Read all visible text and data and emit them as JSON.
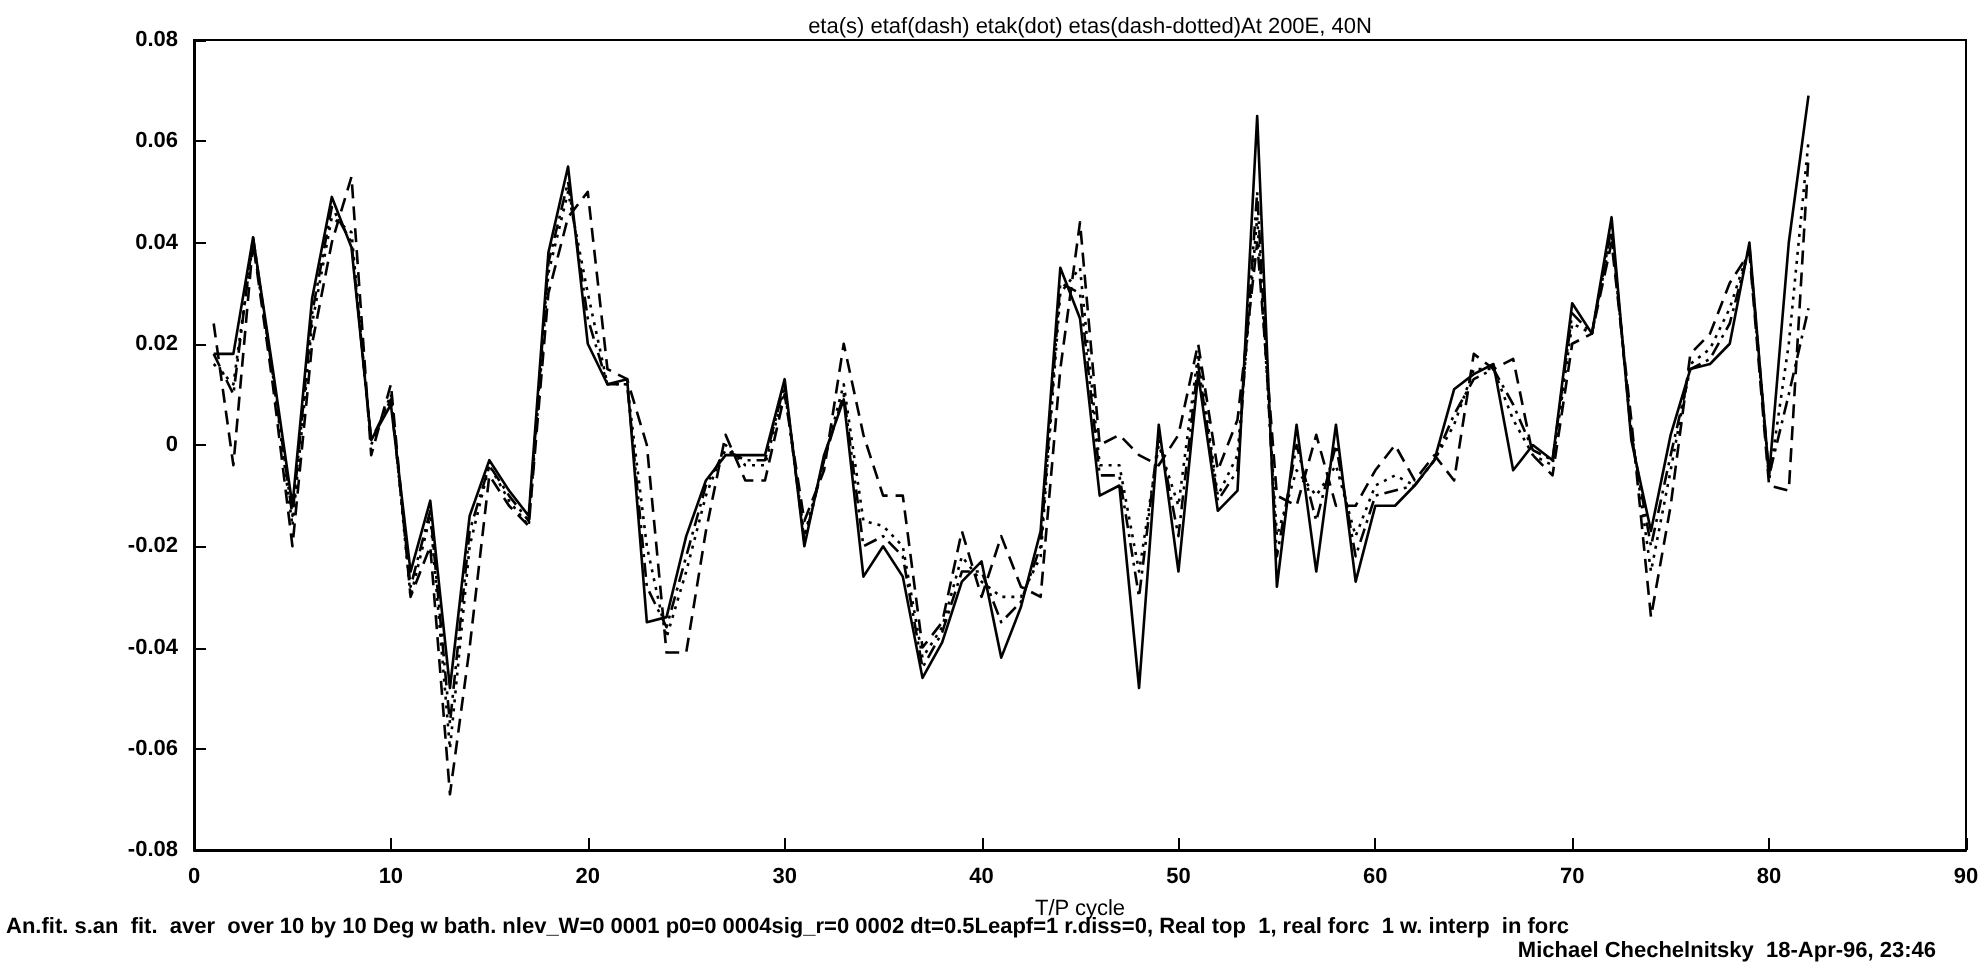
{
  "chart_data": {
    "type": "line",
    "title": "eta(s) etaf(dash) etak(dot) etas(dash-dotted)At 200E, 40N",
    "xlabel": "T/P cycle",
    "annotations": [
      "An.fit. s.an  fit.  aver  over 10 by 10 Deg w bath. nlev_W=0 0001 p0=0 0004sig_r=0 0002 dt=0.5Leapf=1 r.diss=0, Real top  1, real forc  1 w. interp  in forc",
      "Michael Chechelnitsky  18-Apr-96, 23:46"
    ],
    "x": [
      1,
      2,
      3,
      4,
      5,
      6,
      7,
      8,
      9,
      10,
      11,
      12,
      13,
      14,
      15,
      16,
      17,
      18,
      19,
      20,
      21,
      22,
      23,
      24,
      25,
      26,
      27,
      28,
      29,
      30,
      31,
      32,
      33,
      34,
      35,
      36,
      37,
      38,
      39,
      40,
      41,
      42,
      43,
      44,
      45,
      46,
      47,
      48,
      49,
      50,
      51,
      52,
      53,
      54,
      55,
      56,
      57,
      58,
      59,
      60,
      61,
      62,
      63,
      64,
      65,
      66,
      67,
      68,
      69,
      70,
      71,
      72,
      73,
      74,
      75,
      76,
      77,
      78,
      79,
      80,
      81,
      82
    ],
    "series": [
      {
        "color": "#000000",
        "line_style": "solid",
        "values": [
          0.018,
          0.018,
          0.041,
          0.015,
          -0.012,
          0.029,
          0.049,
          0.039,
          0.001,
          0.008,
          -0.025,
          -0.011,
          -0.048,
          -0.014,
          -0.003,
          -0.009,
          -0.014,
          0.038,
          0.055,
          0.02,
          0.012,
          0.013,
          -0.035,
          -0.034,
          -0.018,
          -0.007,
          -0.002,
          -0.002,
          -0.002,
          0.013,
          -0.02,
          -0.002,
          0.009,
          -0.026,
          -0.02,
          -0.026,
          -0.046,
          -0.039,
          -0.027,
          -0.023,
          -0.042,
          -0.032,
          -0.017,
          0.035,
          0.025,
          -0.01,
          -0.008,
          -0.048,
          0.004,
          -0.025,
          0.014,
          -0.013,
          -0.009,
          0.065,
          -0.028,
          0.004,
          -0.025,
          0.004,
          -0.027,
          -0.012,
          -0.012,
          -0.008,
          -0.003,
          0.011,
          0.014,
          0.016,
          -0.005,
          0.0,
          -0.003,
          0.028,
          0.022,
          0.045,
          0.001,
          -0.017,
          0.002,
          0.015,
          0.016,
          0.02,
          0.04,
          -0.006,
          0.04,
          0.069
        ]
      },
      {
        "color": "#000000",
        "line_style": "dashed",
        "values": [
          0.024,
          -0.004,
          0.04,
          0.012,
          -0.02,
          0.02,
          0.04,
          0.053,
          -0.002,
          0.012,
          -0.03,
          -0.02,
          -0.069,
          -0.04,
          -0.006,
          -0.012,
          -0.016,
          0.03,
          0.045,
          0.05,
          0.015,
          0.013,
          0.0,
          -0.041,
          -0.041,
          -0.017,
          0.002,
          -0.007,
          -0.007,
          0.01,
          -0.015,
          -0.005,
          0.02,
          0.002,
          -0.01,
          -0.01,
          -0.04,
          -0.035,
          -0.017,
          -0.03,
          -0.018,
          -0.028,
          -0.03,
          0.015,
          0.044,
          0.0,
          0.002,
          -0.002,
          -0.004,
          0.002,
          0.02,
          -0.005,
          0.005,
          0.04,
          -0.01,
          -0.012,
          0.002,
          -0.012,
          -0.012,
          -0.005,
          0.0,
          -0.007,
          -0.002,
          -0.007,
          0.018,
          0.015,
          0.017,
          -0.002,
          -0.006,
          0.02,
          0.022,
          0.04,
          0.005,
          -0.034,
          -0.012,
          0.018,
          0.022,
          0.032,
          0.038,
          -0.008,
          -0.009,
          0.057
        ]
      },
      {
        "color": "#000000",
        "line_style": "dotted",
        "values": [
          0.016,
          0.012,
          0.04,
          0.014,
          -0.016,
          0.024,
          0.045,
          0.042,
          0.0,
          0.01,
          -0.03,
          -0.014,
          -0.06,
          -0.02,
          -0.004,
          -0.011,
          -0.016,
          0.034,
          0.05,
          0.03,
          0.012,
          0.012,
          -0.02,
          -0.038,
          -0.025,
          -0.01,
          0.0,
          -0.004,
          -0.004,
          0.011,
          -0.018,
          -0.003,
          0.012,
          -0.015,
          -0.016,
          -0.02,
          -0.042,
          -0.036,
          -0.022,
          -0.027,
          -0.03,
          -0.03,
          -0.022,
          0.03,
          0.035,
          -0.004,
          -0.004,
          -0.025,
          0.0,
          -0.012,
          0.018,
          -0.01,
          -0.002,
          0.045,
          -0.018,
          -0.005,
          -0.01,
          -0.004,
          -0.018,
          -0.008,
          -0.006,
          -0.008,
          -0.003,
          0.004,
          0.015,
          0.015,
          0.005,
          -0.002,
          -0.004,
          0.024,
          0.022,
          0.042,
          0.003,
          -0.025,
          -0.005,
          0.016,
          0.019,
          0.027,
          0.039,
          -0.007,
          0.02,
          0.06
        ]
      },
      {
        "color": "#000000",
        "line_style": "dashdot",
        "values": [
          0.018,
          0.01,
          0.041,
          0.014,
          -0.014,
          0.026,
          0.047,
          0.04,
          0.001,
          0.009,
          -0.028,
          -0.013,
          -0.055,
          -0.017,
          -0.004,
          -0.01,
          -0.015,
          0.036,
          0.052,
          0.025,
          0.012,
          0.012,
          -0.028,
          -0.036,
          -0.022,
          -0.008,
          -0.001,
          -0.003,
          -0.003,
          0.012,
          -0.019,
          -0.003,
          0.01,
          -0.02,
          -0.018,
          -0.022,
          -0.044,
          -0.037,
          -0.025,
          -0.025,
          -0.035,
          -0.031,
          -0.02,
          0.032,
          0.03,
          -0.006,
          -0.006,
          -0.03,
          0.002,
          -0.018,
          0.016,
          -0.011,
          -0.005,
          0.05,
          -0.022,
          0.0,
          -0.015,
          0.0,
          -0.022,
          -0.01,
          -0.009,
          -0.008,
          -0.003,
          0.006,
          0.013,
          0.015,
          0.008,
          -0.001,
          -0.003,
          0.026,
          0.022,
          0.043,
          0.002,
          -0.02,
          -0.002,
          0.015,
          0.017,
          0.024,
          0.039,
          -0.006,
          0.01,
          0.027
        ]
      }
    ],
    "xlim": [
      0,
      90
    ],
    "xticks": [
      0,
      10,
      20,
      30,
      40,
      50,
      60,
      70,
      80,
      90
    ],
    "ylim": [
      -0.08,
      0.08
    ],
    "yticks": [
      -0.08,
      -0.06,
      -0.04,
      -0.02,
      0,
      0.02,
      0.04,
      0.06,
      0.08
    ],
    "grid": false,
    "marker": "none"
  }
}
